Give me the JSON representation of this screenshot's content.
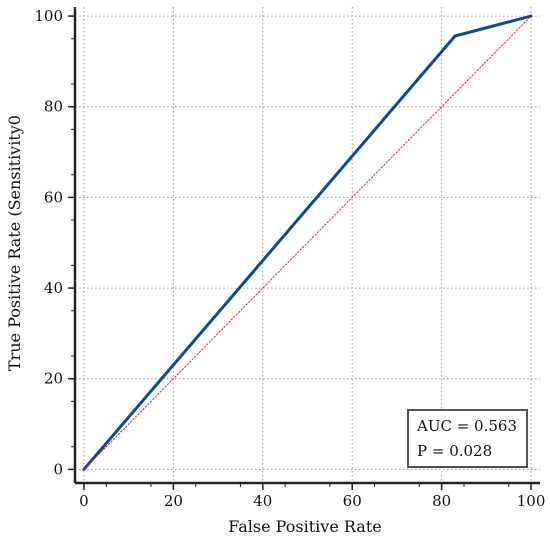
{
  "chart_data": {
    "type": "line",
    "xlabel": "False Positive Rate",
    "ylabel": "True Positive Rate (Sensitivity0",
    "xlim": [
      -2,
      102
    ],
    "ylim": [
      -3,
      102
    ],
    "x_ticks": [
      0,
      20,
      40,
      60,
      80,
      100
    ],
    "y_ticks": [
      0,
      20,
      40,
      60,
      80,
      100
    ],
    "x_tick_labels": [
      "0",
      "20",
      "40",
      "60",
      "80",
      "100"
    ],
    "y_tick_labels": [
      "0",
      "20",
      "40",
      "60",
      "80",
      "100"
    ],
    "grid": true,
    "series": [
      {
        "kind": "roc",
        "color": "#0b4a96",
        "style": "solid",
        "x": [
          0,
          83,
          100
        ],
        "y": [
          0,
          95.6,
          100
        ]
      },
      {
        "kind": "reference",
        "color": "#d62728",
        "style": "dotted",
        "x": [
          0,
          100
        ],
        "y": [
          0,
          100
        ]
      }
    ],
    "annotation": {
      "lines": [
        "AUC = 0.563",
        "P = 0.028"
      ],
      "position": "bottom-right"
    }
  }
}
